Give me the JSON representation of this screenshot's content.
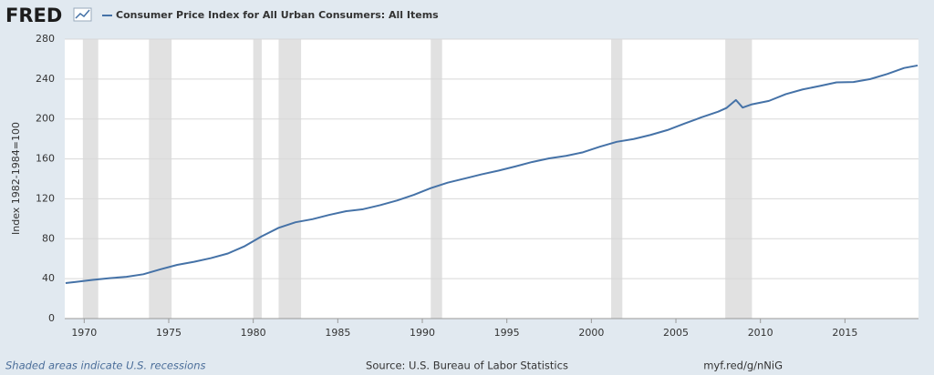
{
  "chart_data": {
    "type": "line",
    "logo": "FRED",
    "ylabel": "Index 1982-1984=100",
    "note": "Shaded areas indicate U.S. recessions",
    "source": "Source: U.S. Bureau of Labor Statistics",
    "link": "myf.red/g/nNiG",
    "x": [
      1968.9,
      1969.5,
      1970.5,
      1971.5,
      1972.5,
      1973.5,
      1974.5,
      1975.5,
      1976.5,
      1977.5,
      1978.5,
      1979.5,
      1980.5,
      1981.5,
      1982.5,
      1983.5,
      1984.5,
      1985.5,
      1986.5,
      1987.5,
      1988.5,
      1989.5,
      1990.5,
      1991.5,
      1992.5,
      1993.5,
      1994.5,
      1995.5,
      1996.5,
      1997.5,
      1998.5,
      1999.5,
      2000.5,
      2001.5,
      2002.5,
      2003.5,
      2004.5,
      2005.5,
      2006.5,
      2007.5,
      2008.0,
      2008.55,
      2008.95,
      2009.5,
      2010.5,
      2011.5,
      2012.5,
      2013.5,
      2014.5,
      2015.5,
      2016.5,
      2017.5,
      2018.5,
      2019.3
    ],
    "series": [
      {
        "name": "Consumer Price Index for All Urban Consumers: All Items",
        "color": "#4572a7",
        "values": [
          35.6,
          36.7,
          38.8,
          40.5,
          41.8,
          44.4,
          49.3,
          53.8,
          56.9,
          60.6,
          65.2,
          72.6,
          82.4,
          90.9,
          96.5,
          99.6,
          103.9,
          107.6,
          109.6,
          113.6,
          118.3,
          124.0,
          130.7,
          136.2,
          140.3,
          144.5,
          148.2,
          152.4,
          156.9,
          160.5,
          163.0,
          166.6,
          172.2,
          177.1,
          179.9,
          184.0,
          188.9,
          195.3,
          201.6,
          207.3,
          211.1,
          219.0,
          211.4,
          214.7,
          218.1,
          224.9,
          229.6,
          233.0,
          236.7,
          237.0,
          240.0,
          245.1,
          251.1,
          253.6
        ]
      }
    ],
    "recessions": [
      [
        1969.92,
        1970.83
      ],
      [
        1973.83,
        1975.17
      ],
      [
        1980.0,
        1980.5
      ],
      [
        1981.5,
        1982.83
      ],
      [
        1990.5,
        1991.17
      ],
      [
        2001.17,
        2001.83
      ],
      [
        2007.92,
        2009.5
      ]
    ],
    "recession_color": "#e1e1e1",
    "xlim": [
      1968.85,
      2019.35
    ],
    "xticks": [
      1970,
      1975,
      1980,
      1985,
      1990,
      1995,
      2000,
      2005,
      2010,
      2015
    ],
    "ylim": [
      0,
      280
    ],
    "yticks": [
      0,
      40,
      80,
      120,
      160,
      200,
      240,
      280
    ],
    "grid": true
  }
}
